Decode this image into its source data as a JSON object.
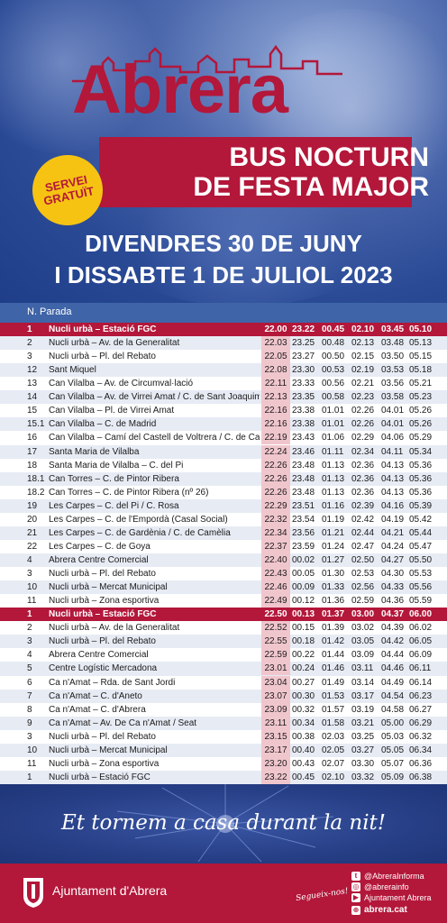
{
  "header": {
    "title": "Abrera",
    "subtitle_line1": "BUS NOCTURN",
    "subtitle_line2": "DE FESTA MAJOR",
    "badge_line1": "SERVEI",
    "badge_line2": "GRATUÏT",
    "date_line1": "DIVENDRES 30 DE JUNY",
    "date_line2": "I DISSABTE 1 DE JULIOL 2023"
  },
  "table": {
    "column_header": "N. Parada",
    "rows": [
      {
        "n": "1",
        "stop": "Nucli urbà – Estació FGC",
        "t": [
          "22.00",
          "23.22",
          "00.45",
          "02.10",
          "03.45",
          "05.10"
        ],
        "highlight": true
      },
      {
        "n": "2",
        "stop": "Nucli urbà – Av. de la Generalitat",
        "t": [
          "22.03",
          "23.25",
          "00.48",
          "02.13",
          "03.48",
          "05.13"
        ]
      },
      {
        "n": "3",
        "stop": "Nucli urbà – Pl. del Rebato",
        "t": [
          "22.05",
          "23.27",
          "00.50",
          "02.15",
          "03.50",
          "05.15"
        ]
      },
      {
        "n": "12",
        "stop": "Sant Miquel",
        "t": [
          "22.08",
          "23.30",
          "00.53",
          "02.19",
          "03.53",
          "05.18"
        ]
      },
      {
        "n": "13",
        "stop": "Can Vilalba – Av. de Circumval·lació",
        "t": [
          "22.11",
          "23.33",
          "00.56",
          "02.21",
          "03.56",
          "05.21"
        ]
      },
      {
        "n": "14",
        "stop": "Can Vilalba – Av. de Virrei Amat / C. de Sant Joaquim",
        "t": [
          "22.13",
          "23.35",
          "00.58",
          "02.23",
          "03.58",
          "05.23"
        ]
      },
      {
        "n": "15",
        "stop": "Can Vilalba – Pl. de Virrei Amat",
        "t": [
          "22.16",
          "23.38",
          "01.01",
          "02.26",
          "04.01",
          "05.26"
        ]
      },
      {
        "n": "15.1",
        "stop": "Can Vilalba – C. de Madrid",
        "t": [
          "22.16",
          "23.38",
          "01.01",
          "02.26",
          "04.01",
          "05.26"
        ]
      },
      {
        "n": "16",
        "stop": "Can Vilalba – Camí del Castell de Voltrera / C. de Castellbisbal",
        "t": [
          "22.19",
          "23.43",
          "01.06",
          "02.29",
          "04.06",
          "05.29"
        ]
      },
      {
        "n": "17",
        "stop": "Santa Maria de Vilalba",
        "t": [
          "22.24",
          "23.46",
          "01.11",
          "02.34",
          "04.11",
          "05.34"
        ]
      },
      {
        "n": "18",
        "stop": "Santa Maria de Vilalba – C. del Pi",
        "t": [
          "22.26",
          "23.48",
          "01.13",
          "02.36",
          "04.13",
          "05.36"
        ]
      },
      {
        "n": "18.1",
        "stop": "Can Torres – C. de Pintor Ribera",
        "t": [
          "22.26",
          "23.48",
          "01.13",
          "02.36",
          "04.13",
          "05.36"
        ]
      },
      {
        "n": "18.2",
        "stop": "Can Torres – C. de Pintor Ribera (nº 26)",
        "t": [
          "22.26",
          "23.48",
          "01.13",
          "02.36",
          "04.13",
          "05.36"
        ]
      },
      {
        "n": "19",
        "stop": "Les Carpes – C. del Pi / C. Rosa",
        "t": [
          "22.29",
          "23.51",
          "01.16",
          "02.39",
          "04.16",
          "05.39"
        ]
      },
      {
        "n": "20",
        "stop": "Les Carpes – C. de l'Empordà (Casal Social)",
        "t": [
          "22.32",
          "23.54",
          "01.19",
          "02.42",
          "04.19",
          "05.42"
        ]
      },
      {
        "n": "21",
        "stop": "Les Carpes – C. de Gardènia / C. de Camèlia",
        "t": [
          "22.34",
          "23.56",
          "01.21",
          "02.44",
          "04.21",
          "05.44"
        ]
      },
      {
        "n": "22",
        "stop": "Les Carpes – C. de Goya",
        "t": [
          "22.37",
          "23.59",
          "01.24",
          "02.47",
          "04.24",
          "05.47"
        ]
      },
      {
        "n": "4",
        "stop": "Abrera Centre Comercial",
        "t": [
          "22.40",
          "00.02",
          "01.27",
          "02.50",
          "04.27",
          "05.50"
        ]
      },
      {
        "n": "3",
        "stop": "Nucli urbà – Pl. del Rebato",
        "t": [
          "22.43",
          "00.05",
          "01.30",
          "02.53",
          "04.30",
          "05.53"
        ]
      },
      {
        "n": "10",
        "stop": "Nucli urbà – Mercat Municipal",
        "t": [
          "22.46",
          "00.09",
          "01.33",
          "02.56",
          "04.33",
          "05.56"
        ]
      },
      {
        "n": "11",
        "stop": "Nucli urbà – Zona esportiva",
        "t": [
          "22.49",
          "00.12",
          "01.36",
          "02.59",
          "04.36",
          "05.59"
        ]
      },
      {
        "n": "1",
        "stop": "Nucli urbà – Estació FGC",
        "t": [
          "22.50",
          "00.13",
          "01.37",
          "03.00",
          "04.37",
          "06.00"
        ],
        "highlight": true
      },
      {
        "n": "2",
        "stop": "Nucli urbà – Av. de la Generalitat",
        "t": [
          "22.52",
          "00.15",
          "01.39",
          "03.02",
          "04.39",
          "06.02"
        ]
      },
      {
        "n": "3",
        "stop": "Nucli urbà – Pl. del Rebato",
        "t": [
          "22.55",
          "00.18",
          "01.42",
          "03.05",
          "04.42",
          "06.05"
        ]
      },
      {
        "n": "4",
        "stop": "Abrera Centre Comercial",
        "t": [
          "22.59",
          "00.22",
          "01.44",
          "03.09",
          "04.44",
          "06.09"
        ]
      },
      {
        "n": "5",
        "stop": "Centre Logístic Mercadona",
        "t": [
          "23.01",
          "00.24",
          "01.46",
          "03.11",
          "04.46",
          "06.11"
        ]
      },
      {
        "n": "6",
        "stop": "Ca n'Amat – Rda. de Sant Jordi",
        "t": [
          "23.04",
          "00.27",
          "01.49",
          "03.14",
          "04.49",
          "06.14"
        ]
      },
      {
        "n": "7",
        "stop": "Ca n'Amat – C. d'Aneto",
        "t": [
          "23.07",
          "00.30",
          "01.53",
          "03.17",
          "04.54",
          "06.23"
        ]
      },
      {
        "n": "8",
        "stop": "Ca n'Amat – C. d'Abrera",
        "t": [
          "23.09",
          "00.32",
          "01.57",
          "03.19",
          "04.58",
          "06.27"
        ]
      },
      {
        "n": "9",
        "stop": "Ca n'Amat – Av. De Ca n'Amat / Seat",
        "t": [
          "23.11",
          "00.34",
          "01.58",
          "03.21",
          "05.00",
          "06.29"
        ]
      },
      {
        "n": "3",
        "stop": "Nucli urbà – Pl. del Rebato",
        "t": [
          "23.15",
          "00.38",
          "02.03",
          "03.25",
          "05.03",
          "06.32"
        ]
      },
      {
        "n": "10",
        "stop": "Nucli urbà – Mercat Municipal",
        "t": [
          "23.17",
          "00.40",
          "02.05",
          "03.27",
          "05.05",
          "06.34"
        ]
      },
      {
        "n": "11",
        "stop": "Nucli urbà – Zona esportiva",
        "t": [
          "23.20",
          "00.43",
          "02.07",
          "03.30",
          "05.07",
          "06.36"
        ]
      },
      {
        "n": "1",
        "stop": "Nucli urbà – Estació FGC",
        "t": [
          "23.22",
          "00.45",
          "02.10",
          "03.32",
          "05.09",
          "06.38"
        ]
      }
    ]
  },
  "footer": {
    "slogan": "Et tornem a casa durant la nit!",
    "ajuntament": "Ajuntament d'Abrera",
    "segueix": "Segueix-nos!",
    "social": [
      {
        "icon": "twitter-icon",
        "glyph": "t",
        "label": "@AbreraInforma"
      },
      {
        "icon": "instagram-icon",
        "glyph": "◎",
        "label": "@abrerainfo"
      },
      {
        "icon": "youtube-icon",
        "glyph": "▶",
        "label": "Ajuntament Abrera"
      },
      {
        "icon": "web-icon",
        "glyph": "⊕",
        "label": "abrera.cat"
      }
    ]
  },
  "colors": {
    "brand_red": "#b3173a",
    "navy": "#233a79",
    "header_blue": "#3f64a7",
    "badge_yellow": "#f6c313",
    "first_time_tint": "#f0c6cd",
    "alt_row": "#e7ebf4"
  }
}
